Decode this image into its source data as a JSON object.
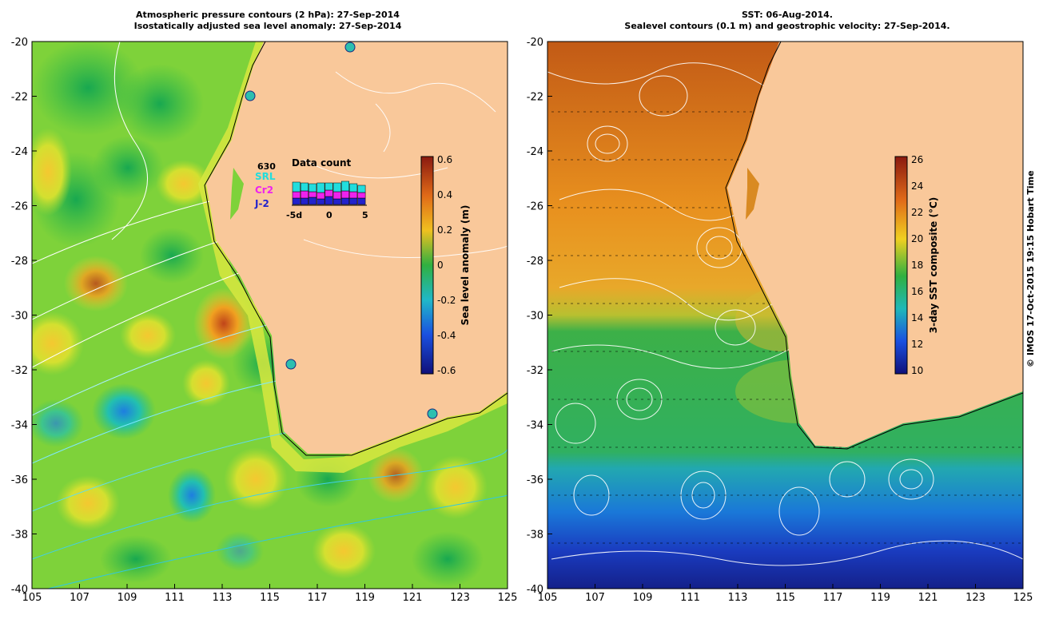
{
  "left_panel": {
    "title_line1": "Atmospheric pressure contours (2 hPa): 27-Sep-2014",
    "title_line2": "Isostatically adjusted sea level anomaly: 27-Sep-2014",
    "colorbar": {
      "label": "Sea level anomaly (m)",
      "ticks": [
        "0.6",
        "0.4",
        "0.2",
        "0",
        "-0.2",
        "-0.4",
        "-0.6"
      ]
    },
    "data_count": {
      "title": "Data count",
      "total": "630",
      "series": [
        "SRL",
        "Cr2",
        "J-2"
      ],
      "series_colors": [
        "#22dddd",
        "#ee22ee",
        "#2222cc"
      ],
      "axis_ticks": [
        "-5d",
        "0",
        "5"
      ]
    },
    "colors": {
      "land": "#f9c89a"
    }
  },
  "right_panel": {
    "title_line1": "SST: 06-Aug-2014.",
    "title_line2": "Sealevel contours (0.1 m) and geostrophic velocity: 27-Sep-2014.",
    "colorbar": {
      "label": "3-day SST composite (°C)",
      "ticks": [
        "26",
        "24",
        "22",
        "20",
        "18",
        "16",
        "14",
        "12",
        "10"
      ]
    },
    "colors": {
      "land": "#f9c89a"
    }
  },
  "axes": {
    "lat_ticks": [
      "-20",
      "-22",
      "-24",
      "-26",
      "-28",
      "-30",
      "-32",
      "-34",
      "-36",
      "-38",
      "-40"
    ],
    "lon_ticks": [
      "105",
      "107",
      "109",
      "111",
      "113",
      "115",
      "117",
      "119",
      "121",
      "123",
      "125"
    ]
  },
  "credit": "© IMOS 17-Oct-2015 19:15 Hobart Time"
}
